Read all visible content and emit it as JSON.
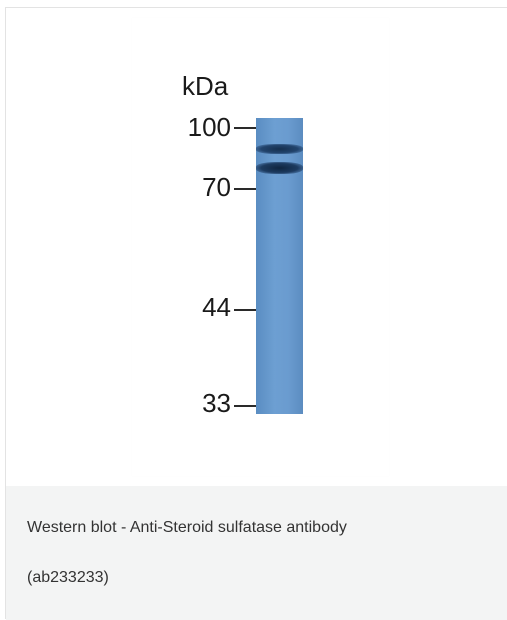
{
  "figure": {
    "unit_label": "kDa",
    "markers": [
      "100",
      "70",
      "44",
      "33"
    ],
    "lane_color": "#6a9bcf",
    "band_color": "#1f3a5c"
  },
  "caption": {
    "line1": "Western blot - Anti-Steroid sulfatase antibody",
    "line2": "(ab233233)",
    "background": "#f3f4f4"
  }
}
